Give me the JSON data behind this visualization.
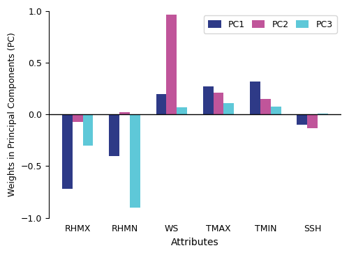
{
  "categories": [
    "RHMX",
    "RHMN",
    "WS",
    "TMAX",
    "TMIN",
    "SSH"
  ],
  "PC1": [
    -0.72,
    -0.4,
    0.2,
    0.27,
    0.32,
    -0.1
  ],
  "PC2": [
    -0.07,
    0.02,
    0.97,
    0.21,
    0.15,
    -0.13
  ],
  "PC3": [
    -0.3,
    -0.9,
    0.07,
    0.11,
    0.08,
    0.01
  ],
  "colors": {
    "PC1": "#2E3A87",
    "PC2": "#C0559A",
    "PC3": "#5EC8D8"
  },
  "ylim": [
    -1.0,
    1.0
  ],
  "yticks": [
    -1.0,
    -0.5,
    0.0,
    0.5,
    1.0
  ],
  "xlabel": "Attributes",
  "ylabel": "Weights in Principal Components (PC)",
  "bar_width": 0.22,
  "legend_labels": [
    "PC1",
    "PC2",
    "PC3"
  ]
}
